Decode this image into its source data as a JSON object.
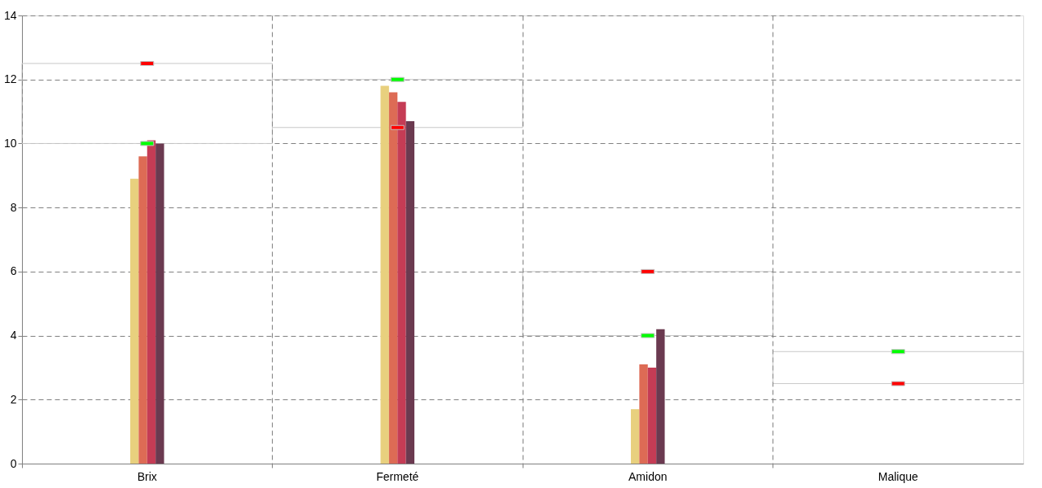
{
  "chart_data": {
    "type": "bar",
    "categories": [
      "Brix",
      "Fermeté",
      "Amidon",
      "Malique"
    ],
    "series": [
      {
        "type": "bar",
        "base": [
          10,
          10.5,
          4,
          2.5
        ],
        "values": [
          2.5,
          1.5,
          2,
          1
        ],
        "color": "#c8c8c8"
      },
      {
        "color": "#e8d07e",
        "values": [
          8.9,
          11.8,
          1.7,
          0
        ]
      },
      {
        "color": "#dd6b55",
        "values": [
          9.6,
          11.6,
          3.1,
          0
        ]
      },
      {
        "color": "#c53c55",
        "values": [
          10.1,
          11.3,
          3.0,
          0
        ]
      },
      {
        "color": "#6b3a50",
        "values": [
          10.0,
          10.7,
          4.2,
          0
        ]
      },
      {
        "type": "scatter",
        "x": [
          "Brix",
          "Fermeté",
          "Amidon",
          "Malique"
        ],
        "values": [
          10,
          12,
          4,
          3.5
        ],
        "color": "#00ff00"
      },
      {
        "type": "scatter",
        "x": [
          "Brix",
          "Fermeté",
          "Amidon",
          "Malique"
        ],
        "values": [
          12.5,
          10.5,
          6,
          2.5
        ],
        "color": "#ff0000"
      }
    ],
    "ylim": [
      0,
      14
    ],
    "yticks": [
      0,
      2,
      4,
      6,
      8,
      10,
      12,
      14
    ],
    "grid": true
  }
}
